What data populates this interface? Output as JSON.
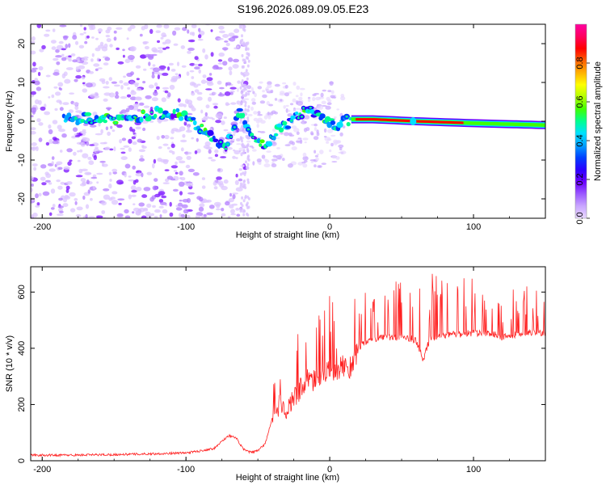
{
  "title": "S196.2026.089.09.05.E23",
  "chart_data": [
    {
      "type": "heatmap",
      "name": "spectrogram",
      "xlabel": "Height of straight line (km)",
      "ylabel": "Frequency (Hz)",
      "xlim": [
        -208,
        150
      ],
      "ylim": [
        -25,
        25
      ],
      "xticks": [
        -200,
        -100,
        0,
        100
      ],
      "yticks": [
        -20,
        -10,
        0,
        10,
        20
      ],
      "colorbar": {
        "label": "Normalized spectral amplitude",
        "range": [
          0,
          1
        ],
        "ticks": [
          "0.0",
          "0.2",
          "0.4",
          "0.6",
          "0.8"
        ],
        "colors": [
          "#e8d8ff",
          "#c9a6ff",
          "#9b59ff",
          "#6a00ff",
          "#2b00ff",
          "#0040ff",
          "#00a0ff",
          "#00e0ff",
          "#00ff90",
          "#40ff00",
          "#b0ff00",
          "#ffff00",
          "#ffb000",
          "#ff6000",
          "#ff0000",
          "#ff0060",
          "#ff00a0"
        ]
      },
      "ridge": [
        {
          "x": -180,
          "y": 0.5
        },
        {
          "x": -160,
          "y": 1.0
        },
        {
          "x": -140,
          "y": 0.5
        },
        {
          "x": -120,
          "y": 2.0
        },
        {
          "x": -100,
          "y": 1.5
        },
        {
          "x": -90,
          "y": -2.0
        },
        {
          "x": -80,
          "y": -5.0
        },
        {
          "x": -72,
          "y": -7.0
        },
        {
          "x": -62,
          "y": 2.5
        },
        {
          "x": -55,
          "y": -3.0
        },
        {
          "x": -45,
          "y": -6.0
        },
        {
          "x": -35,
          "y": -2.0
        },
        {
          "x": -25,
          "y": 0.5
        },
        {
          "x": -15,
          "y": 3.5
        },
        {
          "x": -5,
          "y": 1.0
        },
        {
          "x": 5,
          "y": -1.0
        },
        {
          "x": 15,
          "y": 0.5
        },
        {
          "x": 30,
          "y": 0.5
        },
        {
          "x": 60,
          "y": 0.0
        },
        {
          "x": 100,
          "y": -0.5
        },
        {
          "x": 150,
          "y": -1.0
        }
      ]
    },
    {
      "type": "line",
      "name": "snr",
      "xlabel": "Height of straight line (km)",
      "ylabel": "SNR (10 * v/v)",
      "xlim": [
        -208,
        150
      ],
      "ylim": [
        0,
        690
      ],
      "xticks": [
        -200,
        -100,
        0,
        100
      ],
      "yticks": [
        0,
        200,
        400,
        600
      ],
      "color": "#ff2020",
      "series": [
        {
          "name": "SNR",
          "x": [
            -208,
            -180,
            -150,
            -120,
            -100,
            -90,
            -80,
            -75,
            -70,
            -65,
            -60,
            -55,
            -50,
            -45,
            -40,
            -35,
            -30,
            -25,
            -20,
            -15,
            -10,
            -5,
            0,
            5,
            10,
            15,
            20,
            25,
            30,
            40,
            50,
            60,
            65,
            70,
            80,
            90,
            100,
            110,
            120,
            130,
            140,
            150
          ],
          "y": [
            20,
            20,
            22,
            25,
            28,
            35,
            45,
            70,
            90,
            80,
            40,
            30,
            35,
            60,
            150,
            200,
            180,
            220,
            260,
            300,
            280,
            310,
            330,
            320,
            340,
            330,
            400,
            420,
            430,
            440,
            440,
            430,
            360,
            440,
            445,
            450,
            455,
            455,
            440,
            450,
            455,
            455
          ]
        },
        {
          "name": "Spike peaks",
          "x": [
            -75,
            -65,
            -50,
            -40,
            -35,
            -30,
            -20,
            -15,
            -10,
            0,
            5,
            10,
            15,
            18,
            22,
            25,
            35,
            40,
            50,
            55,
            60,
            70,
            80,
            90,
            100,
            110,
            120,
            130,
            140,
            145
          ],
          "y": [
            160,
            140,
            130,
            260,
            330,
            300,
            520,
            380,
            560,
            620,
            500,
            640,
            600,
            680,
            620,
            690,
            600,
            620,
            650,
            640,
            620,
            670,
            640,
            660,
            650,
            620,
            640,
            650,
            640,
            630
          ]
        }
      ]
    }
  ]
}
